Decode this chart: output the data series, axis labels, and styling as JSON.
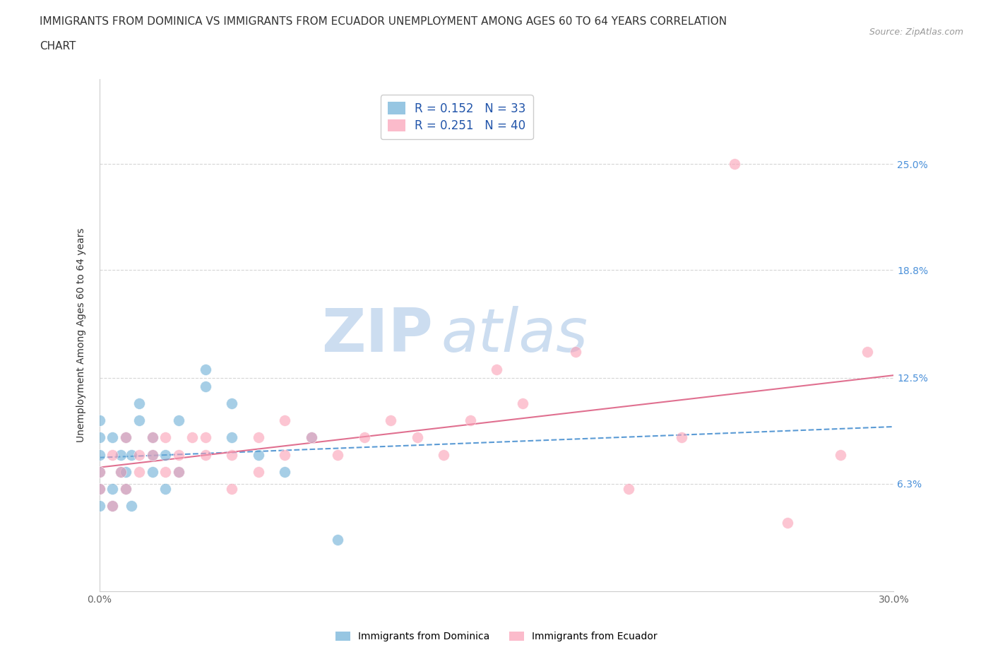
{
  "title_line1": "IMMIGRANTS FROM DOMINICA VS IMMIGRANTS FROM ECUADOR UNEMPLOYMENT AMONG AGES 60 TO 64 YEARS CORRELATION",
  "title_line2": "CHART",
  "source": "Source: ZipAtlas.com",
  "ylabel": "Unemployment Among Ages 60 to 64 years",
  "xlim": [
    0.0,
    0.3
  ],
  "ylim": [
    0.0,
    0.3
  ],
  "legend_r1": "R = 0.152",
  "legend_n1": "N = 33",
  "legend_r2": "R = 0.251",
  "legend_n2": "N = 40",
  "dominica_color": "#6baed6",
  "ecuador_color": "#fa9fb5",
  "dominica_line_color": "#5b9bd5",
  "ecuador_line_color": "#e07090",
  "watermark_color": "#ccddf0",
  "dominica_x": [
    0.0,
    0.0,
    0.0,
    0.0,
    0.0,
    0.0,
    0.005,
    0.005,
    0.005,
    0.008,
    0.008,
    0.01,
    0.01,
    0.01,
    0.012,
    0.012,
    0.015,
    0.015,
    0.02,
    0.02,
    0.02,
    0.025,
    0.025,
    0.03,
    0.03,
    0.04,
    0.04,
    0.05,
    0.05,
    0.06,
    0.07,
    0.08,
    0.09
  ],
  "dominica_y": [
    0.05,
    0.06,
    0.07,
    0.08,
    0.09,
    0.1,
    0.05,
    0.06,
    0.09,
    0.07,
    0.08,
    0.06,
    0.07,
    0.09,
    0.05,
    0.08,
    0.1,
    0.11,
    0.07,
    0.08,
    0.09,
    0.06,
    0.08,
    0.07,
    0.1,
    0.12,
    0.13,
    0.09,
    0.11,
    0.08,
    0.07,
    0.09,
    0.03
  ],
  "ecuador_x": [
    0.0,
    0.0,
    0.005,
    0.005,
    0.008,
    0.01,
    0.01,
    0.015,
    0.015,
    0.02,
    0.02,
    0.025,
    0.025,
    0.03,
    0.03,
    0.035,
    0.04,
    0.04,
    0.05,
    0.05,
    0.06,
    0.06,
    0.07,
    0.07,
    0.08,
    0.09,
    0.1,
    0.11,
    0.12,
    0.13,
    0.14,
    0.15,
    0.16,
    0.18,
    0.2,
    0.22,
    0.24,
    0.26,
    0.28,
    0.29
  ],
  "ecuador_y": [
    0.06,
    0.07,
    0.05,
    0.08,
    0.07,
    0.06,
    0.09,
    0.07,
    0.08,
    0.08,
    0.09,
    0.07,
    0.09,
    0.07,
    0.08,
    0.09,
    0.08,
    0.09,
    0.06,
    0.08,
    0.07,
    0.09,
    0.08,
    0.1,
    0.09,
    0.08,
    0.09,
    0.1,
    0.09,
    0.08,
    0.1,
    0.13,
    0.11,
    0.14,
    0.06,
    0.09,
    0.25,
    0.04,
    0.08,
    0.14
  ],
  "ytick_positions": [
    0.063,
    0.125,
    0.188,
    0.25
  ],
  "ytick_labels": [
    "6.3%",
    "12.5%",
    "18.8%",
    "25.0%"
  ]
}
